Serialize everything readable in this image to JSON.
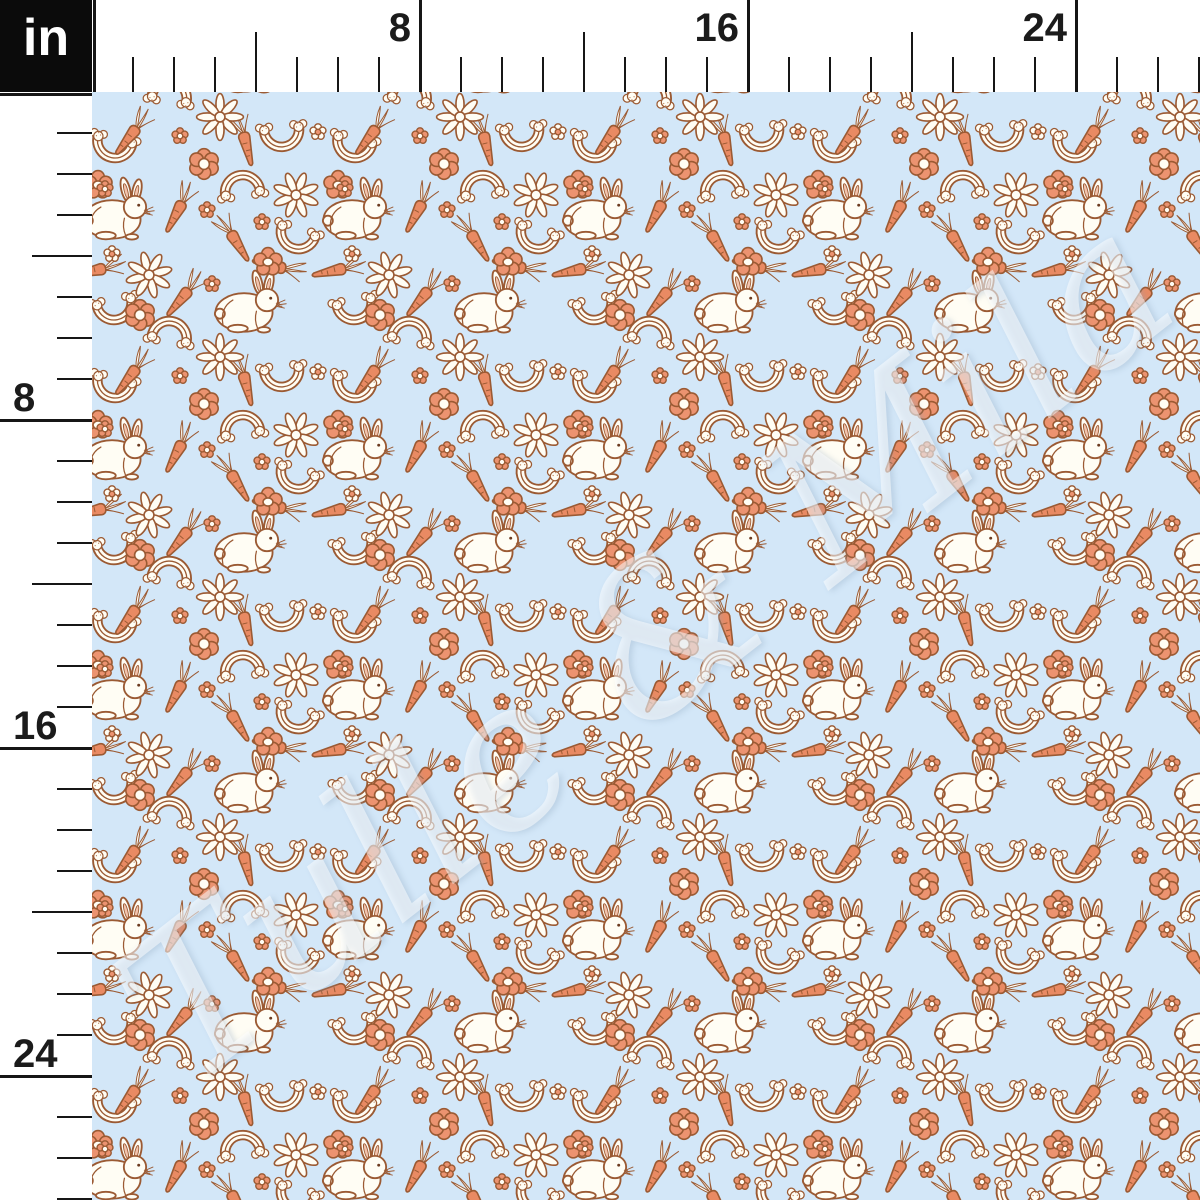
{
  "unit_box": {
    "label": "in"
  },
  "ruler_top": {
    "labels": [
      "8",
      "16",
      "24"
    ]
  },
  "ruler_left": {
    "labels": [
      "8",
      "16",
      "24"
    ]
  },
  "watermark": {
    "text": "Tulle & Mila"
  },
  "fabric": {
    "motifs": [
      "bunny",
      "carrot",
      "rainbow",
      "upside-down-rainbow",
      "daisy",
      "coral-flower",
      "tiny-flower"
    ],
    "colors": {
      "background": "#d3e7f8",
      "outline": "#9b5a33",
      "coral": "#ec9370",
      "carrot": "#e98a63",
      "cream": "#fffdf4",
      "tick": "#161616",
      "ruler_background": "#ffffff",
      "unit_box_background": "#0b0b0b",
      "unit_box_text": "#ffffff",
      "watermark_text": "rgba(255,255,255,0.5)"
    }
  }
}
